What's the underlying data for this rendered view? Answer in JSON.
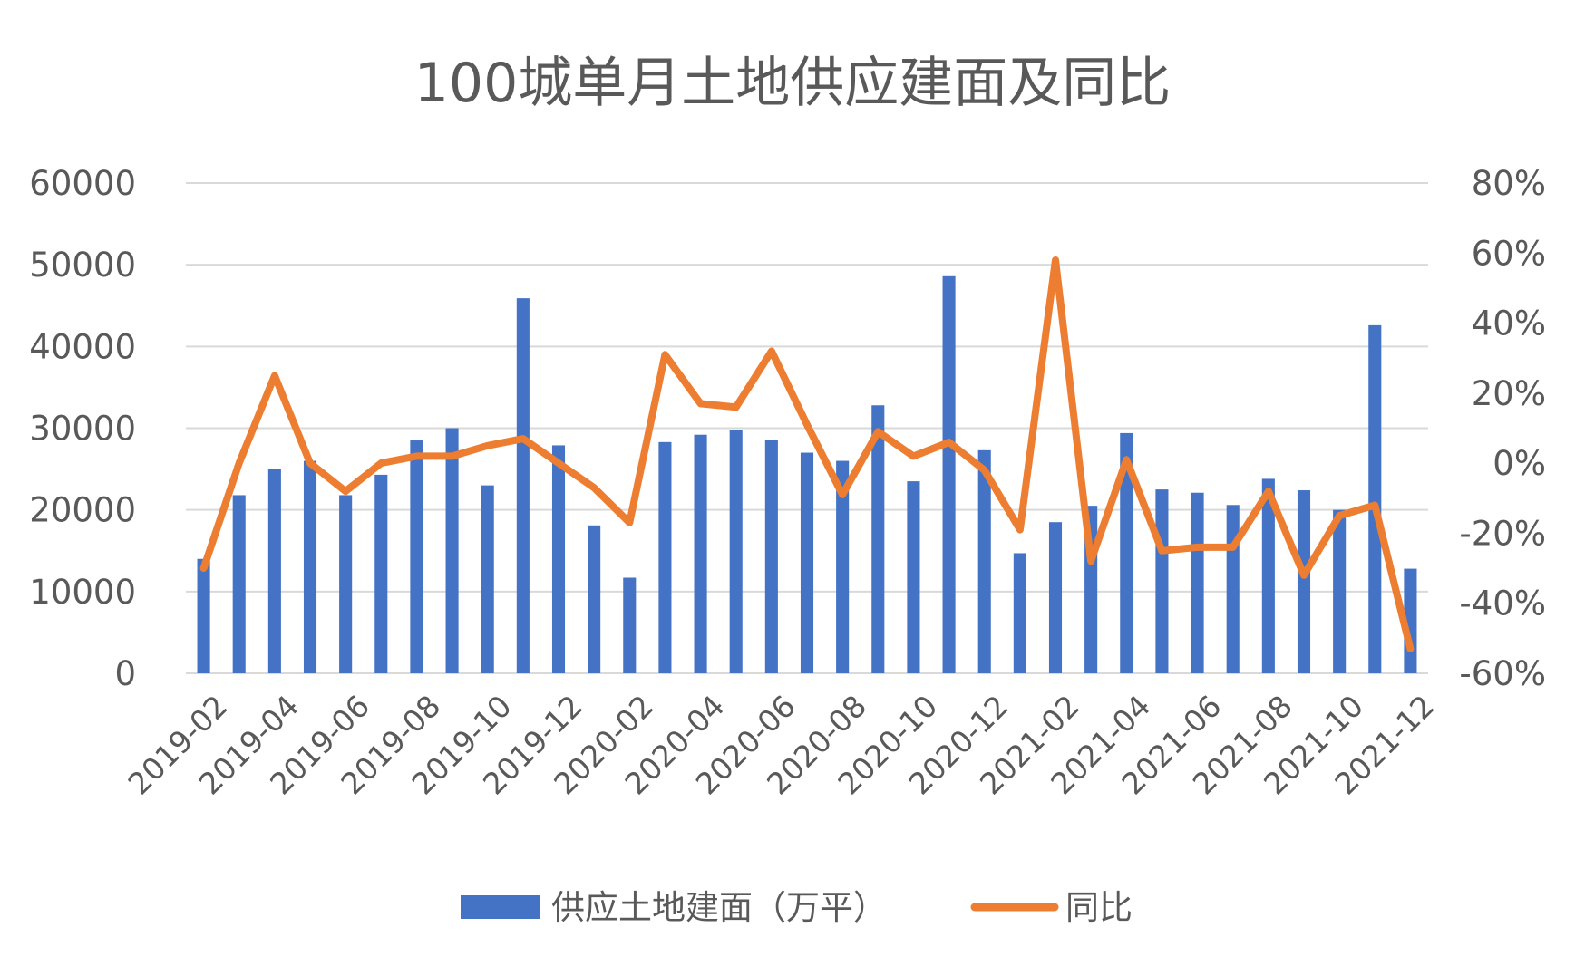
{
  "chart_data": {
    "type": "bar",
    "title": "100城单月土地供应建面及同比",
    "xlabel": "",
    "ylabel": "",
    "x": [
      "2019-02",
      "2019-03",
      "2019-04",
      "2019-05",
      "2019-06",
      "2019-07",
      "2019-08",
      "2019-09",
      "2019-10",
      "2019-11",
      "2019-12",
      "2020-01",
      "2020-02",
      "2020-03",
      "2020-04",
      "2020-05",
      "2020-06",
      "2020-07",
      "2020-08",
      "2020-09",
      "2020-10",
      "2020-11",
      "2020-12",
      "2021-01",
      "2021-02",
      "2021-03",
      "2021-04",
      "2021-05",
      "2021-06",
      "2021-07",
      "2021-08",
      "2021-09",
      "2021-10",
      "2021-11",
      "2021-12"
    ],
    "x_tick_labels": [
      "2019-02",
      "2019-04",
      "2019-06",
      "2019-08",
      "2019-10",
      "2019-12",
      "2020-02",
      "2020-04",
      "2020-06",
      "2020-08",
      "2020-10",
      "2020-12",
      "2021-02",
      "2021-04",
      "2021-06",
      "2021-08",
      "2021-10",
      "2021-12"
    ],
    "ylim": [
      0,
      60000
    ],
    "y_ticks": [
      "0",
      "10000",
      "20000",
      "30000",
      "40000",
      "50000",
      "60000"
    ],
    "y2lim": [
      -0.6,
      0.8
    ],
    "y2_ticks": [
      "-60%",
      "-40%",
      "-20%",
      "0%",
      "20%",
      "40%",
      "60%",
      "80%"
    ],
    "grid": true,
    "legend_position": "bottom",
    "series": [
      {
        "name": "供应土地建面（万平）",
        "type": "bar",
        "axis": "left",
        "color": "#4472C4",
        "values": [
          14000,
          21800,
          25000,
          26000,
          21800,
          24300,
          28500,
          30000,
          23000,
          45900,
          27900,
          18100,
          11700,
          28300,
          29200,
          29800,
          28600,
          27000,
          26000,
          32800,
          23500,
          48600,
          27300,
          14700,
          18500,
          20500,
          29400,
          22500,
          22100,
          20600,
          23800,
          22400,
          20000,
          42600,
          12800
        ]
      },
      {
        "name": "同比",
        "type": "line",
        "axis": "right",
        "color": "#ED7D31",
        "values": [
          -0.3,
          0.0,
          0.25,
          0.0,
          -0.08,
          0.0,
          0.02,
          0.02,
          0.05,
          0.07,
          0.0,
          -0.07,
          -0.17,
          0.31,
          0.17,
          0.16,
          0.32,
          0.11,
          -0.09,
          0.09,
          0.02,
          0.06,
          -0.02,
          -0.19,
          0.58,
          -0.28,
          0.01,
          -0.25,
          -0.24,
          -0.24,
          -0.08,
          -0.32,
          -0.15,
          -0.12,
          -0.53
        ]
      }
    ]
  }
}
